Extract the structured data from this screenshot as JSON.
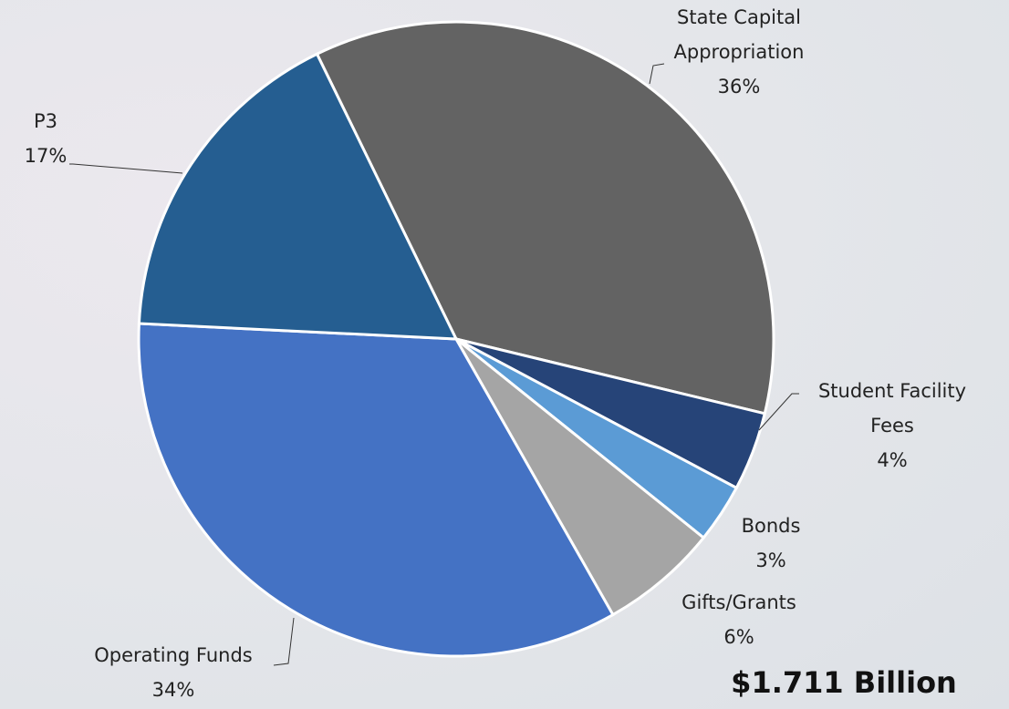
{
  "chart_data": {
    "type": "pie",
    "categories": [
      "State Capital Appropriation",
      "Student Facility Fees",
      "Bonds",
      "Gifts/Grants",
      "Operating Funds",
      "P3"
    ],
    "values": [
      36,
      4,
      3,
      6,
      34,
      17
    ],
    "value_labels": [
      "36%",
      "4%",
      "3%",
      "6%",
      "34%",
      "17%"
    ],
    "colors": [
      "#636363",
      "#264478",
      "#5b9bd5",
      "#a5a5a5",
      "#4472c4",
      "#255e91"
    ],
    "annotation": "$1.711 Billion"
  }
}
